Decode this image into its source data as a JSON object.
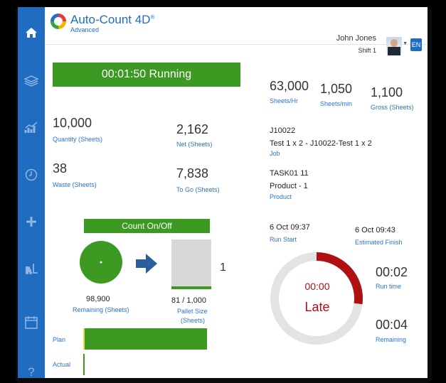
{
  "app": {
    "title": "Auto-Count 4D",
    "edition": "Advanced",
    "title_mark": "®"
  },
  "user": {
    "name": "John Jones",
    "shift": "Shift 1",
    "language_button": "EN"
  },
  "sidebar": {
    "items": [
      {
        "icon": "home-icon"
      },
      {
        "icon": "layers-icon"
      },
      {
        "icon": "chart-icon"
      },
      {
        "icon": "clock-icon"
      },
      {
        "icon": "plus-icon"
      },
      {
        "icon": "forklift-icon"
      },
      {
        "icon": "calendar-icon"
      },
      {
        "icon": "help-icon"
      }
    ]
  },
  "status": {
    "text": "00:01:50 Running",
    "color": "#3c9a23"
  },
  "quantity": {
    "value": "10,000",
    "label": "Quantity (Sheets)"
  },
  "net": {
    "value": "2,162",
    "label": "Net (Sheets)"
  },
  "waste": {
    "value": "38",
    "label": "Waste (Sheets)"
  },
  "to_go": {
    "value": "7,838",
    "label": "To Go (Sheets)"
  },
  "rates": [
    {
      "value": "63,000",
      "label": "Sheets/Hr"
    },
    {
      "value": "1,050",
      "label": "Sheets/min"
    },
    {
      "value": "1,100",
      "label": "Gross (Sheets)"
    }
  ],
  "job": {
    "code": "J10022",
    "name": "Test 1 x 2 - J10022-Test 1 x 2",
    "label": "Job"
  },
  "product": {
    "code": "TASK01 11",
    "name": "Product - 1",
    "label": "Product"
  },
  "count": {
    "header": "Count On/Off"
  },
  "remaining": {
    "value": "98,900",
    "label": "Remaining (Sheets)"
  },
  "pallet": {
    "value": "81 / 1,000",
    "label": "Pallet Size",
    "label2": "(Sheets)",
    "count": "1",
    "fill_fraction": 0.081
  },
  "run_start": {
    "value": "6 Oct 09:37",
    "label": "Run Start"
  },
  "estimated_finish": {
    "value": "6 Oct 09:43",
    "label": "Estimated Finish"
  },
  "gauge": {
    "time": "00:00",
    "status": "Late",
    "progress_fraction": 0.27,
    "accent": "#b01010"
  },
  "run_time": {
    "value": "00:02",
    "label": "Run time"
  },
  "remaining_time": {
    "value": "00:04",
    "label": "Remaining"
  },
  "plan_actual": {
    "plan_label": "Plan",
    "actual_label": "Actual",
    "plan_fraction": 0.98,
    "actual_fraction": 0.01
  }
}
